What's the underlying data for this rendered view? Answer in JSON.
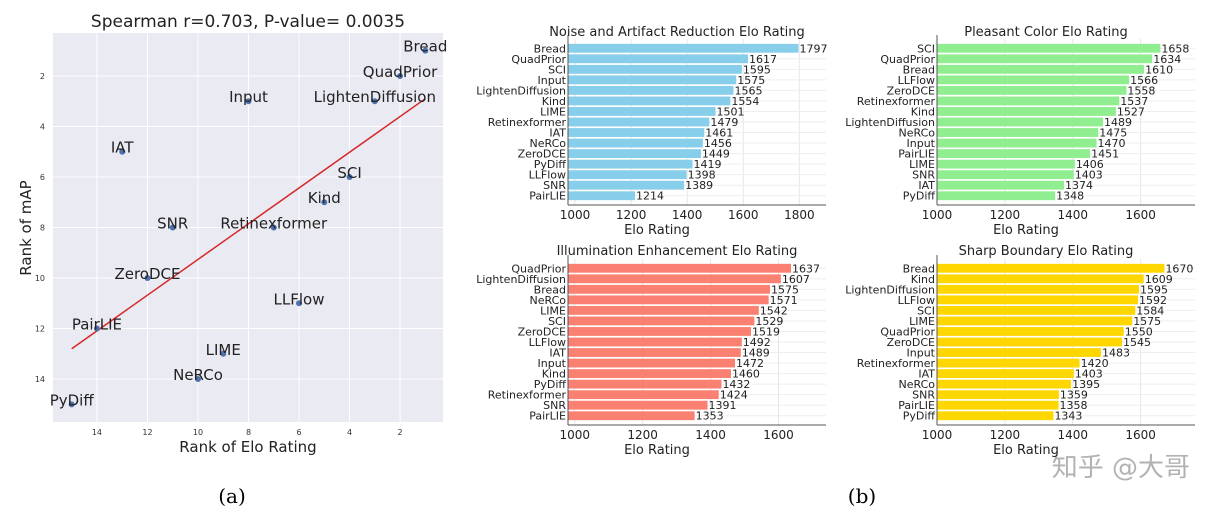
{
  "captions": {
    "a": "(a)",
    "b": "(b)"
  },
  "watermark": "知乎 @大哥",
  "chart_data": [
    {
      "type": "scatter",
      "title": "Spearman r=0.703, P-value= 0.0035",
      "xlabel": "Rank of Elo Rating",
      "ylabel": "Rank of mAP",
      "x_reversed": true,
      "y_reversed": true,
      "xlim": [
        15.74,
        0.3
      ],
      "ylim": [
        0.3,
        15.7
      ],
      "xticks": [
        14,
        12,
        10,
        8,
        6,
        4,
        2
      ],
      "yticks": [
        2,
        4,
        6,
        8,
        10,
        12,
        14
      ],
      "grid": true,
      "background": "#eaeaf2",
      "point_color": "#4c72b0",
      "fit_line_color": "#d62728",
      "fit_line": [
        [
          15,
          12.8
        ],
        [
          1,
          2.9
        ]
      ],
      "points": [
        {
          "label": "Bread",
          "x": 1,
          "y": 1
        },
        {
          "label": "QuadPrior",
          "x": 2,
          "y": 2
        },
        {
          "label": "LightenDiffusion",
          "x": 3,
          "y": 3
        },
        {
          "label": "Input",
          "x": 8,
          "y": 3
        },
        {
          "label": "IAT",
          "x": 13,
          "y": 5
        },
        {
          "label": "SCI",
          "x": 4,
          "y": 6
        },
        {
          "label": "Kind",
          "x": 5,
          "y": 7
        },
        {
          "label": "SNR",
          "x": 11,
          "y": 8
        },
        {
          "label": "Retinexformer",
          "x": 7,
          "y": 8
        },
        {
          "label": "ZeroDCE",
          "x": 12,
          "y": 10
        },
        {
          "label": "LLFlow",
          "x": 6,
          "y": 11
        },
        {
          "label": "PairLIE",
          "x": 14,
          "y": 12
        },
        {
          "label": "LIME",
          "x": 9,
          "y": 13
        },
        {
          "label": "NeRCo",
          "x": 10,
          "y": 14
        },
        {
          "label": "PyDiff",
          "x": 15,
          "y": 15
        }
      ]
    },
    {
      "type": "bar",
      "orientation": "horizontal",
      "title": "Noise and Artifact Reduction Elo Rating",
      "xlabel": "Elo Rating",
      "xlim": [
        975,
        1895
      ],
      "xticks": [
        1000,
        1200,
        1400,
        1600,
        1800
      ],
      "color": "#87ceeb",
      "grid": true,
      "categories": [
        "Bread",
        "QuadPrior",
        "SCI",
        "Input",
        "LightenDiffusion",
        "Kind",
        "LIME",
        "Retinexformer",
        "IAT",
        "NeRCo",
        "ZeroDCE",
        "PyDiff",
        "LLFlow",
        "SNR",
        "PairLIE"
      ],
      "values": [
        1797,
        1617,
        1595,
        1575,
        1565,
        1554,
        1501,
        1479,
        1461,
        1456,
        1449,
        1419,
        1398,
        1389,
        1214
      ]
    },
    {
      "type": "bar",
      "orientation": "horizontal",
      "title": "Pleasant Color Elo Rating",
      "xlabel": "Elo Rating",
      "xlim": [
        1000,
        1760
      ],
      "xticks": [
        1000,
        1200,
        1400,
        1600
      ],
      "color": "#90ee90",
      "grid": true,
      "categories": [
        "SCI",
        "QuadPrior",
        "Bread",
        "LLFlow",
        "ZeroDCE",
        "Retinexformer",
        "Kind",
        "LightenDiffusion",
        "NeRCo",
        "Input",
        "PairLIE",
        "LIME",
        "SNR",
        "IAT",
        "PyDiff"
      ],
      "values": [
        1658,
        1634,
        1610,
        1566,
        1558,
        1537,
        1527,
        1489,
        1475,
        1470,
        1451,
        1406,
        1403,
        1374,
        1348
      ]
    },
    {
      "type": "bar",
      "orientation": "horizontal",
      "title": "Illumination Enhancement Elo Rating",
      "xlabel": "Elo Rating",
      "xlim": [
        980,
        1740
      ],
      "xticks": [
        1000,
        1200,
        1400,
        1600
      ],
      "color": "#fa8072",
      "grid": true,
      "categories": [
        "QuadPrior",
        "LightenDiffusion",
        "Bread",
        "NeRCo",
        "LIME",
        "SCI",
        "ZeroDCE",
        "LLFlow",
        "IAT",
        "Input",
        "Kind",
        "PyDiff",
        "Retinexformer",
        "SNR",
        "PairLIE"
      ],
      "values": [
        1637,
        1607,
        1575,
        1571,
        1542,
        1529,
        1519,
        1492,
        1489,
        1472,
        1460,
        1432,
        1424,
        1391,
        1353
      ]
    },
    {
      "type": "bar",
      "orientation": "horizontal",
      "title": "Sharp Boundary Elo Rating",
      "xlabel": "Elo Rating",
      "xlim": [
        1000,
        1760
      ],
      "xticks": [
        1000,
        1200,
        1400,
        1600
      ],
      "color": "#ffd700",
      "grid": true,
      "categories": [
        "Bread",
        "Kind",
        "LightenDiffusion",
        "LLFlow",
        "SCI",
        "LIME",
        "QuadPrior",
        "ZeroDCE",
        "Input",
        "Retinexformer",
        "IAT",
        "NeRCo",
        "SNR",
        "PairLIE",
        "PyDiff"
      ],
      "values": [
        1670,
        1609,
        1595,
        1592,
        1584,
        1575,
        1550,
        1545,
        1483,
        1420,
        1403,
        1395,
        1359,
        1358,
        1343
      ]
    }
  ]
}
